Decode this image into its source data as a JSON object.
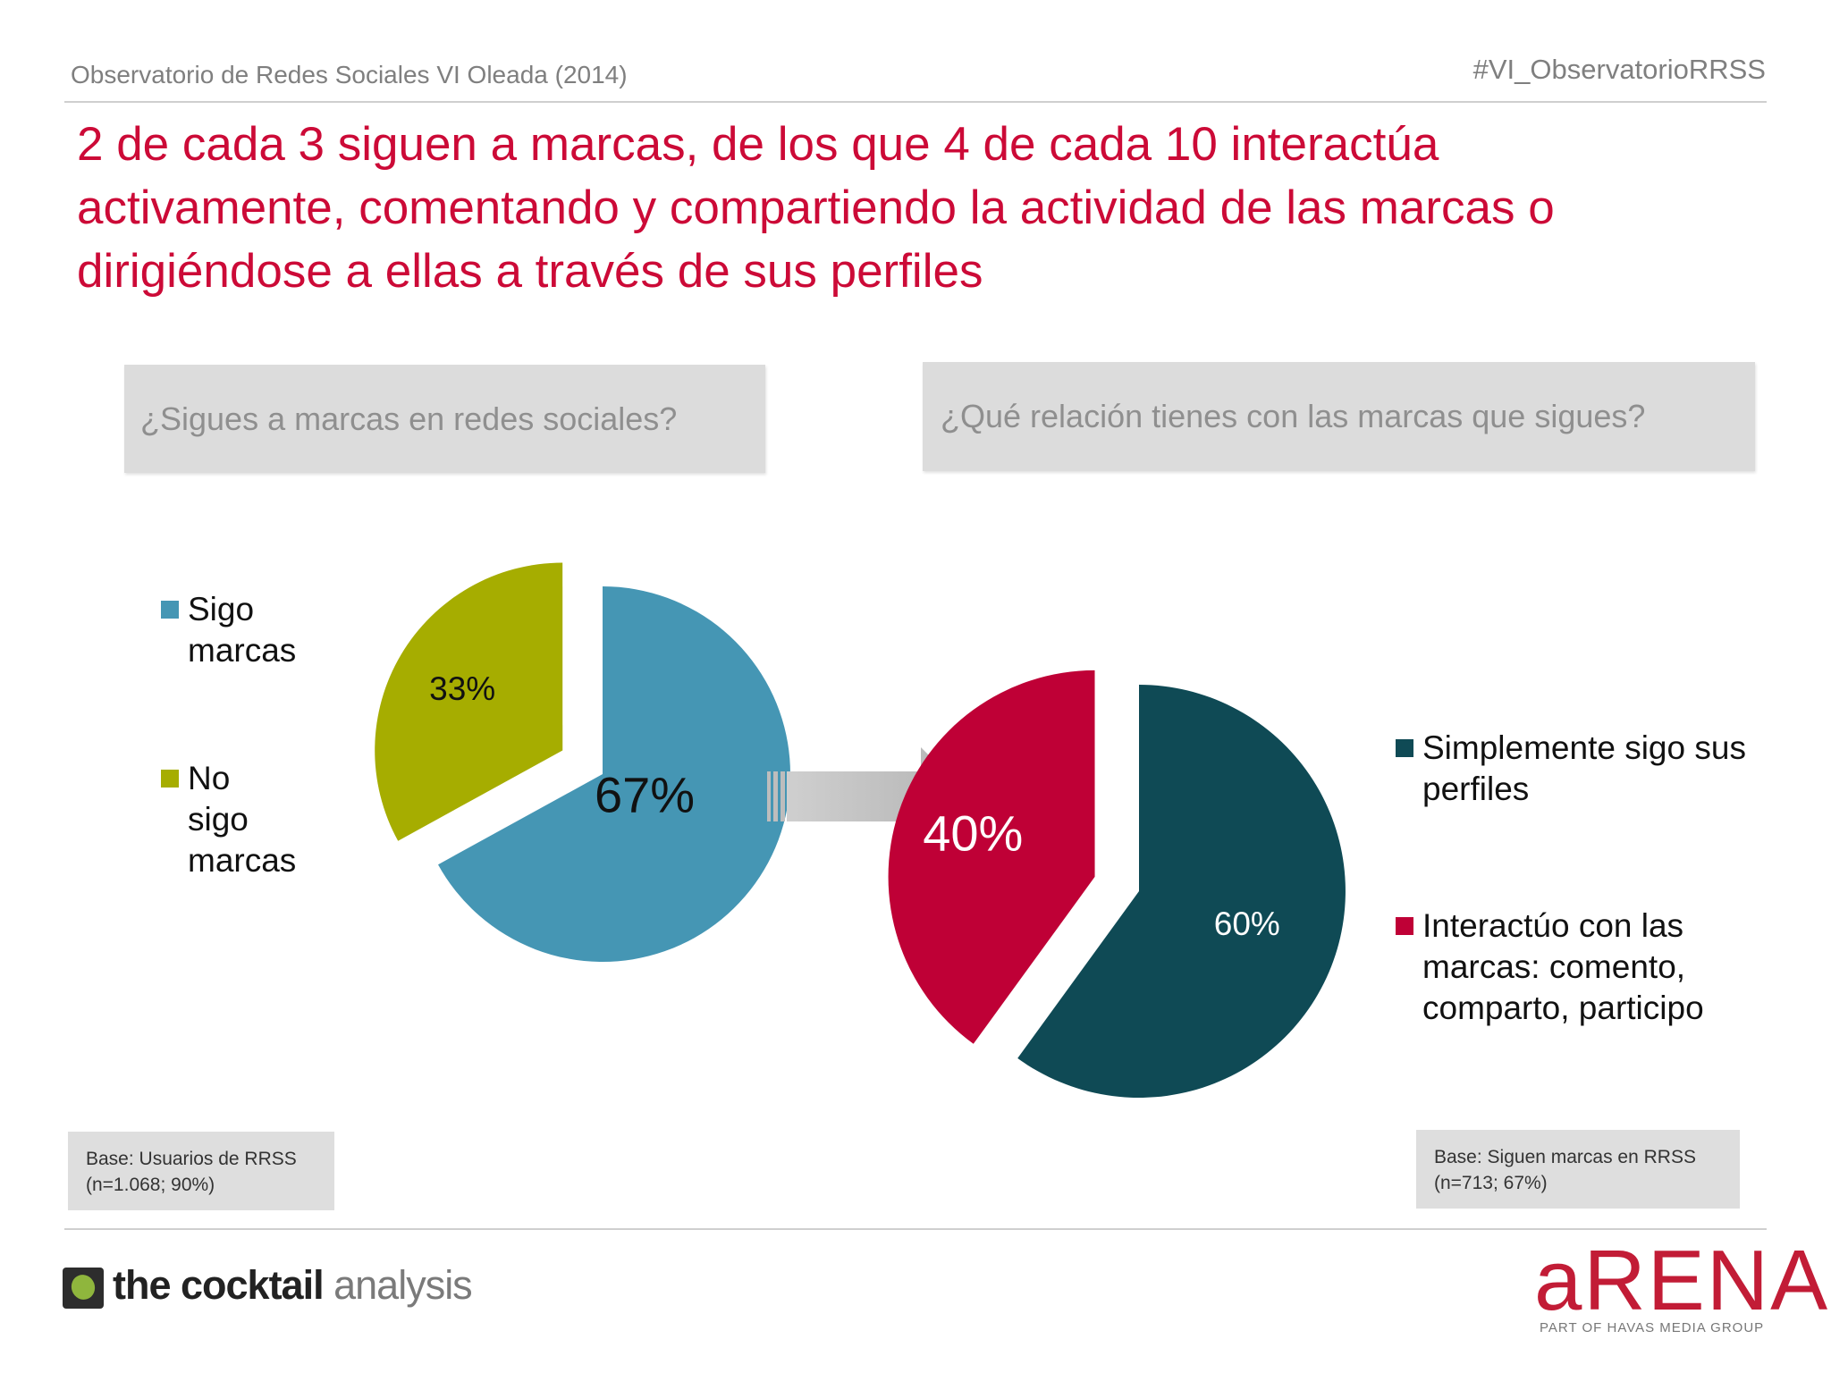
{
  "header": {
    "survey_title": "Observatorio de Redes Sociales VI Oleada (2014)",
    "hashtag": "#VI_ObservatorioRRSS",
    "headline_lines": [
      "2 de cada 3 siguen a marcas, de los que  4 de cada 10 interactúa",
      "activamente, comentando y compartiendo la actividad de las marcas o",
      "dirigiéndose a ellas a través de sus perfiles"
    ]
  },
  "colors": {
    "accent": "#cc0a37",
    "sigo": "#4596b4",
    "no_sigo": "#a6ad00",
    "simplemente": "#0f4a55",
    "interactuo": "#bf0036"
  },
  "chart_data": [
    {
      "type": "pie",
      "title": "¿Sigues a marcas en redes sociales?",
      "labels": [
        "Sigo marcas",
        "No sigo marcas"
      ],
      "legend": [
        "Sigo marcas",
        "No sigo\nmarcas"
      ],
      "values": [
        67,
        33
      ],
      "data_labels": [
        "67%",
        "33%"
      ],
      "base_note": [
        "Base: Usuarios de RRSS",
        "(n=1.068; 90%)"
      ]
    },
    {
      "type": "pie",
      "title": "¿Qué relación tienes con las marcas que sigues?",
      "labels": [
        "Simplemente sigo sus perfiles",
        "Interactúo con las marcas: comento, comparto, participo"
      ],
      "legend": [
        "Simplemente sigo sus\nperfiles",
        "Interactúo con las\nmarcas: comento,\ncomparto, participo"
      ],
      "values": [
        60,
        40
      ],
      "data_labels": [
        "60%",
        "40%"
      ],
      "base_note": [
        "Base: Siguen marcas en RRSS",
        "(n=713; 67%)"
      ]
    }
  ],
  "logos": {
    "cocktail_bold": "the cocktail",
    "cocktail_light": "analysis",
    "arena": "aRENA",
    "arena_sub": "PART OF HAVAS MEDIA GROUP"
  }
}
